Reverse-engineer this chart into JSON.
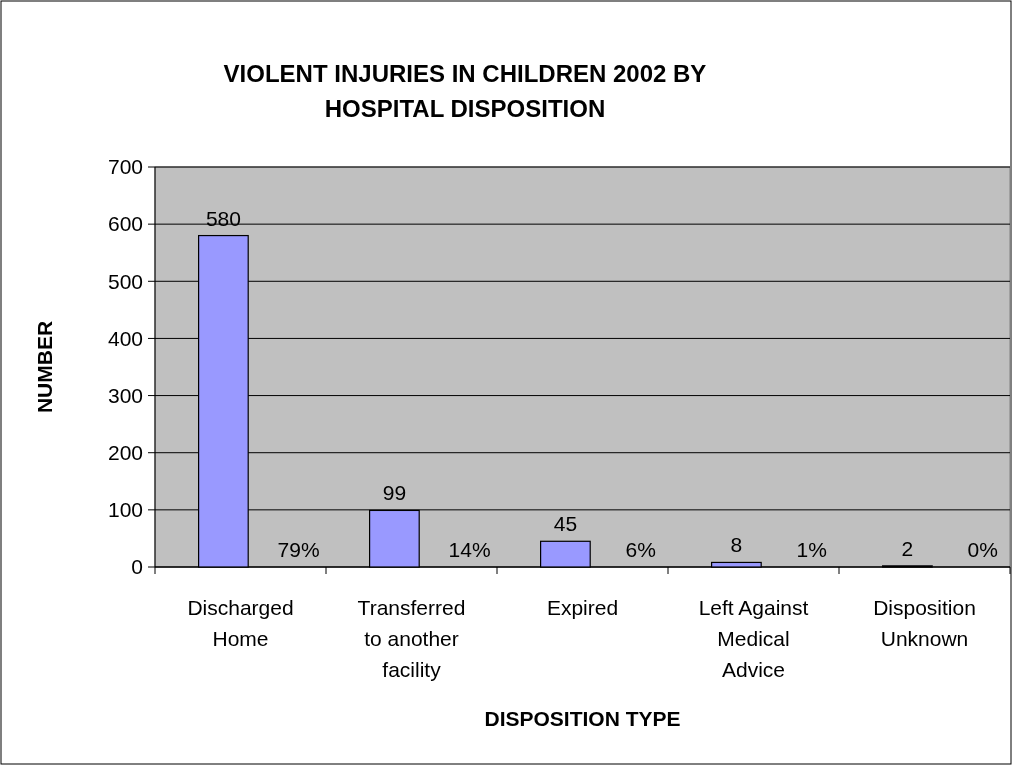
{
  "chart_data": {
    "type": "bar",
    "title": "VIOLENT INJURIES IN CHILDREN 2002 BY HOSPITAL DISPOSITION",
    "xlabel": "DISPOSITION TYPE",
    "ylabel": "NUMBER",
    "categories": [
      "Discharged Home",
      "Transferred to another facility",
      "Expired",
      "Left Against Medical Advice",
      "Disposition Unknown"
    ],
    "values": [
      580,
      99,
      45,
      8,
      2
    ],
    "color": "#9999ff",
    "data_labels": true,
    "ylim": [
      0,
      700
    ],
    "yticks": [
      0,
      100,
      200,
      300,
      400,
      500,
      600,
      700
    ],
    "grid": "y",
    "annotations": [
      {
        "text": "79%",
        "x": "Discharged Home",
        "y": 0
      },
      {
        "text": "14%",
        "x": "Transferred to another facility",
        "y": 0
      },
      {
        "text": "6%",
        "x": "Expired",
        "y": 0
      },
      {
        "text": "1%",
        "x": "Left Against Medical Advice",
        "y": 0
      },
      {
        "text": "0%",
        "x": "Disposition Unknown",
        "y": 0
      }
    ]
  }
}
